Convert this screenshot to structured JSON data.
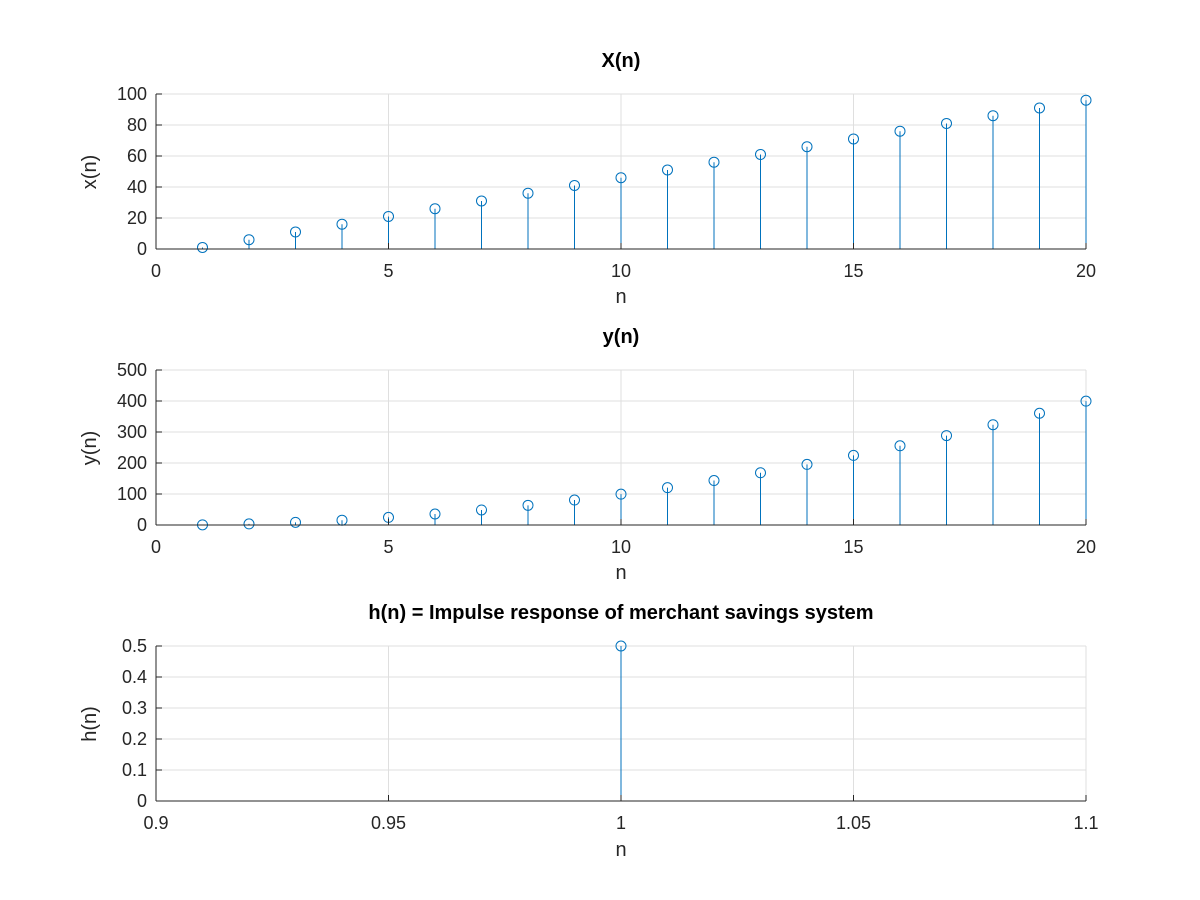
{
  "chart_data": [
    {
      "type": "stem",
      "title": "X(n)",
      "xlabel": "n",
      "ylabel": "x(n)",
      "xlim": [
        0,
        20
      ],
      "ylim": [
        0,
        100
      ],
      "xticks": [
        0,
        5,
        10,
        15,
        20
      ],
      "xtick_labels": [
        "0",
        "5",
        "10",
        "15",
        "20"
      ],
      "yticks": [
        0,
        20,
        40,
        60,
        80,
        100
      ],
      "ytick_labels": [
        "0",
        "20",
        "40",
        "60",
        "80",
        "100"
      ],
      "grid": true,
      "color": "#0072bd",
      "x": [
        1,
        2,
        3,
        4,
        5,
        6,
        7,
        8,
        9,
        10,
        11,
        12,
        13,
        14,
        15,
        16,
        17,
        18,
        19,
        20
      ],
      "y": [
        1,
        6,
        11,
        16,
        21,
        26,
        31,
        36,
        41,
        46,
        51,
        56,
        61,
        66,
        71,
        76,
        81,
        86,
        91,
        96
      ]
    },
    {
      "type": "stem",
      "title": "y(n)",
      "xlabel": "n",
      "ylabel": "y(n)",
      "xlim": [
        0,
        20
      ],
      "ylim": [
        0,
        500
      ],
      "xticks": [
        0,
        5,
        10,
        15,
        20
      ],
      "xtick_labels": [
        "0",
        "5",
        "10",
        "15",
        "20"
      ],
      "yticks": [
        0,
        100,
        200,
        300,
        400,
        500
      ],
      "ytick_labels": [
        "0",
        "100",
        "200",
        "300",
        "400",
        "500"
      ],
      "grid": true,
      "color": "#0072bd",
      "x": [
        1,
        2,
        3,
        4,
        5,
        6,
        7,
        8,
        9,
        10,
        11,
        12,
        13,
        14,
        15,
        16,
        17,
        18,
        19,
        20
      ],
      "y": [
        0.5,
        3.5,
        8.5,
        15.5,
        24.5,
        35.5,
        48.5,
        63.5,
        80.5,
        99.5,
        120.5,
        143.5,
        168.5,
        195.5,
        224.5,
        255.5,
        288.5,
        323.5,
        360.5,
        399.5
      ]
    },
    {
      "type": "stem",
      "title": "h(n) = Impulse response of merchant savings system",
      "xlabel": "n",
      "ylabel": "h(n)",
      "xlim": [
        0.9,
        1.1
      ],
      "ylim": [
        0,
        0.5
      ],
      "xticks": [
        0.9,
        0.95,
        1,
        1.05,
        1.1
      ],
      "xtick_labels": [
        "0.9",
        "0.95",
        "1",
        "1.05",
        "1.1"
      ],
      "yticks": [
        0,
        0.1,
        0.2,
        0.3,
        0.4,
        0.5
      ],
      "ytick_labels": [
        "0",
        "0.1",
        "0.2",
        "0.3",
        "0.4",
        "0.5"
      ],
      "grid": true,
      "color": "#0072bd",
      "x": [
        1
      ],
      "y": [
        0.5
      ]
    }
  ]
}
